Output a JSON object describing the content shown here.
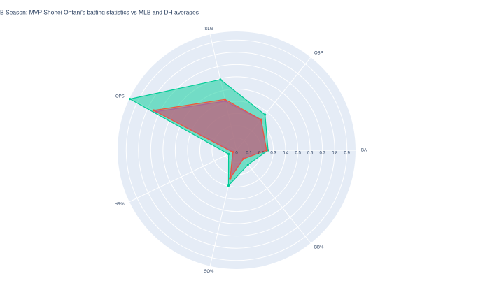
{
  "chart_data": {
    "type": "radar",
    "title": "B Season: MVP Shohei Ohtani's batting statistics vs MLB and DH averages",
    "categories": [
      "BA",
      "OBP",
      "SLG",
      "OPS",
      "HR%",
      "SO%",
      "BB%"
    ],
    "series": [
      {
        "color": "#00cc96",
        "values": [
          0.257,
          0.372,
          0.592,
          0.965,
          0.072,
          0.296,
          0.15
        ]
      },
      {
        "color": "#636efa",
        "values": [
          0.244,
          0.317,
          0.411,
          0.728,
          0.031,
          0.232,
          0.087
        ]
      },
      {
        "color": "#ef553b",
        "values": [
          0.245,
          0.32,
          0.426,
          0.75,
          0.035,
          0.235,
          0.09
        ]
      }
    ],
    "rlim": [
      0,
      0.97
    ],
    "rticks": [
      0,
      0.1,
      0.2,
      0.3,
      0.4,
      0.5,
      0.6,
      0.7,
      0.8,
      0.9
    ],
    "grid": true
  }
}
